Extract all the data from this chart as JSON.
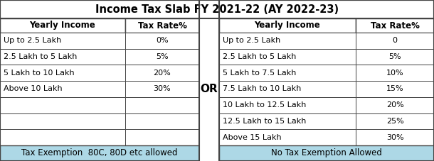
{
  "title": "Income Tax Slab FY 2021-22 (AY 2022-23)",
  "footer_bg": "#add8e6",
  "left_table": {
    "headers": [
      "Yearly Income",
      "Tax Rate%"
    ],
    "rows": [
      [
        "Up to 2.5 Lakh",
        "0%"
      ],
      [
        "2.5 Lakh to 5 Lakh",
        "5%"
      ],
      [
        "5 Lakh to 10 Lakh",
        "20%"
      ],
      [
        "Above 10 Lakh",
        "30%"
      ],
      [
        "",
        ""
      ],
      [
        "",
        ""
      ],
      [
        "",
        ""
      ]
    ],
    "footer": "Tax Exemption  80C, 80D etc allowed"
  },
  "right_table": {
    "headers": [
      "Yearly Income",
      "Tax Rate%"
    ],
    "rows": [
      [
        "Up to 2.5 Lakh",
        "0"
      ],
      [
        "2.5 Lakh to 5 Lakh",
        "5%"
      ],
      [
        "5 Lakh to 7.5 Lakh",
        "10%"
      ],
      [
        "7.5 Lakh to 10 Lakh",
        "15%"
      ],
      [
        "10 Lakh to 12.5 Lakh",
        "20%"
      ],
      [
        "12.5 Lakh to 15 Lakh",
        "25%"
      ],
      [
        "Above 15 Lakh",
        "30%"
      ]
    ],
    "footer": "No Tax Exemption Allowed"
  },
  "or_text": "OR",
  "border_color": "#444444",
  "title_fontsize": 10.5,
  "header_fontsize": 8.5,
  "data_fontsize": 8.0,
  "footer_fontsize": 8.5,
  "or_fontsize": 11,
  "fig_w": 6.1,
  "fig_h": 2.27,
  "dpi": 100
}
